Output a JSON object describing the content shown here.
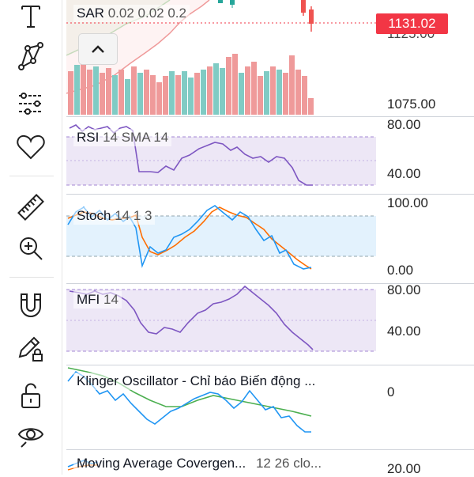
{
  "main_pane": {
    "legend_name": "SAR",
    "legend_params": "0.02 0.02 0.2",
    "price_badge": "1131.02",
    "price_label_top": "1125.00",
    "price_label_low": "1075.00",
    "collapse_icon": "chevron-up-icon"
  },
  "rsi_pane": {
    "name": "RSI",
    "params": "14 SMA 14",
    "axis_top": "80.00",
    "axis_bottom": "40.00"
  },
  "stoch_pane": {
    "name": "Stoch",
    "params": "14 1 3",
    "axis_top": "100.00",
    "axis_bottom": "0.00"
  },
  "mfi_pane": {
    "name": "MFI",
    "params": "14",
    "axis_top": "80.00",
    "axis_bottom": "40.00"
  },
  "klinger_pane": {
    "name": "Klinger Oscillator - Chỉ báo Biến động ...",
    "axis_zero": "0"
  },
  "macd_pane": {
    "name": "Moving Average Covergen...",
    "params": "12 26 clo...",
    "axis_top": "20.00"
  },
  "toolbar": {
    "tools": [
      "text-tool-icon",
      "pattern-tool-icon",
      "prediction-tool-icon",
      "favorites-heart-icon",
      "ruler-icon",
      "zoom-in-icon",
      "magnet-icon",
      "lock-drawing-pencil-icon",
      "unlock-icon",
      "eye-hide-icon"
    ]
  },
  "colors": {
    "up": "#26a69a",
    "down": "#ef5350",
    "rsi": "#7e57c2",
    "stoch_k": "#2196f3",
    "stoch_d": "#ff6d00",
    "klinger": "#2196f3",
    "klinger_signal": "#4caf50",
    "badge": "#f23645"
  }
}
